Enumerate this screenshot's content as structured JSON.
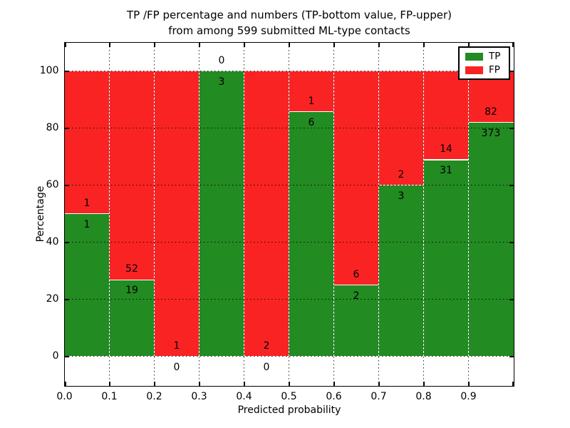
{
  "figure": {
    "title_line1": "TP /FP percentage and numbers (TP-bottom value, FP-upper)",
    "title_line2": "from among 599 submitted ML-type contacts"
  },
  "axes": {
    "xlabel": "Predicted probability",
    "ylabel": "Percentage",
    "x_tick_labels": [
      "0.0",
      "0.1",
      "0.2",
      "0.3",
      "0.4",
      "0.5",
      "0.6",
      "0.7",
      "0.8",
      "0.9"
    ],
    "y_tick_labels": [
      "0",
      "20",
      "40",
      "60",
      "80",
      "100"
    ],
    "y_tick_values": [
      0,
      20,
      40,
      60,
      80,
      100
    ]
  },
  "legend": {
    "entries": [
      {
        "label": "TP",
        "color": "#228b22"
      },
      {
        "label": "FP",
        "color": "#fa2323"
      }
    ],
    "position": "upper right"
  },
  "colors": {
    "tp": "#228b22",
    "fp": "#fa2323",
    "bar_edge": "#ffffff",
    "grid": "#000000",
    "text": "#000000",
    "background": "#ffffff"
  },
  "chart_data": {
    "type": "bar",
    "stacked": true,
    "normalized_to_percent": true,
    "title": "TP /FP percentage and numbers (TP-bottom value, FP-upper) from among 599 submitted ML-type contacts",
    "xlabel": "Predicted probability",
    "ylabel": "Percentage",
    "categories": [
      "0.0-0.1",
      "0.1-0.2",
      "0.2-0.3",
      "0.3-0.4",
      "0.4-0.5",
      "0.5-0.6",
      "0.6-0.7",
      "0.7-0.8",
      "0.8-0.9",
      "0.9-1.0"
    ],
    "series": [
      {
        "name": "TP",
        "counts": [
          1,
          19,
          0,
          3,
          0,
          6,
          2,
          3,
          31,
          373
        ],
        "percentages": [
          50.0,
          26.8,
          0.0,
          100.0,
          0.0,
          85.7,
          25.0,
          60.0,
          68.9,
          82.0
        ]
      },
      {
        "name": "FP",
        "counts": [
          1,
          52,
          1,
          0,
          2,
          1,
          6,
          2,
          14,
          82
        ],
        "percentages": [
          50.0,
          73.2,
          100.0,
          0.0,
          100.0,
          14.3,
          75.0,
          40.0,
          31.1,
          18.0
        ]
      }
    ],
    "bar_value_labels": "FP count shown above TP/FP boundary, TP count shown below boundary",
    "total_contacts": 599,
    "xlim": [
      0.0,
      1.0
    ],
    "ylim": [
      -10.3,
      110.3
    ],
    "grid": true,
    "grid_style": "dotted",
    "legend_position": "upper right"
  }
}
